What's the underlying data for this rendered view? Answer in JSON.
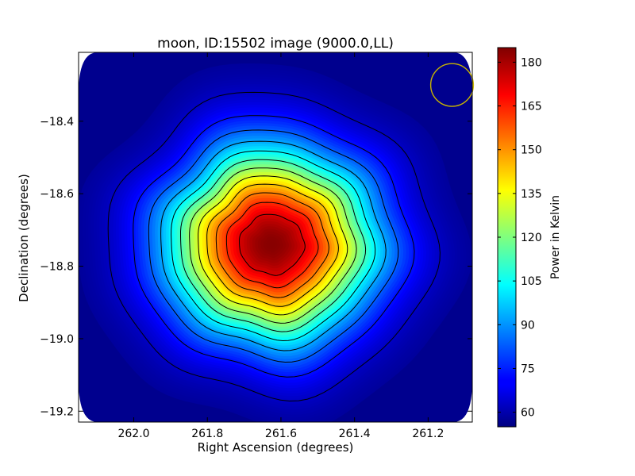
{
  "chart_data": {
    "type": "heatmap",
    "title": "moon, ID:15502 image (9000.0,LL)",
    "xlabel": "Right Ascension (degrees)",
    "ylabel": "Declination (degrees)",
    "xlim": [
      262.15,
      261.08
    ],
    "ylim": [
      -19.23,
      -18.21
    ],
    "x_ticks": [
      262.0,
      261.8,
      261.6,
      261.4,
      261.2
    ],
    "x_tick_labels": [
      "262.0",
      "261.8",
      "261.6",
      "261.4",
      "261.2"
    ],
    "y_ticks": [
      -18.4,
      -18.6,
      -18.8,
      -19.0,
      -19.2
    ],
    "y_tick_labels": [
      "−18.4",
      "−18.6",
      "−18.8",
      "−19.0",
      "−19.2"
    ],
    "colorbar": {
      "label": "Power in Kelvin",
      "range": [
        55,
        185
      ],
      "ticks": [
        60,
        75,
        90,
        105,
        120,
        135,
        150,
        165,
        180
      ],
      "tick_labels": [
        "60",
        "75",
        "90",
        "105",
        "120",
        "135",
        "150",
        "165",
        "180"
      ],
      "colormap": "jet"
    },
    "source": {
      "center_ra": 261.625,
      "center_dec": -18.74,
      "peak": 184,
      "background": 57
    },
    "contour_levels": [
      64,
      74,
      84,
      94,
      104,
      114,
      124,
      134,
      144,
      154,
      164,
      174
    ],
    "beam": {
      "ra": 261.135,
      "dec": -18.3,
      "radius_deg": 0.058,
      "color": "#c8b400"
    },
    "grid": false,
    "legend": "none"
  }
}
